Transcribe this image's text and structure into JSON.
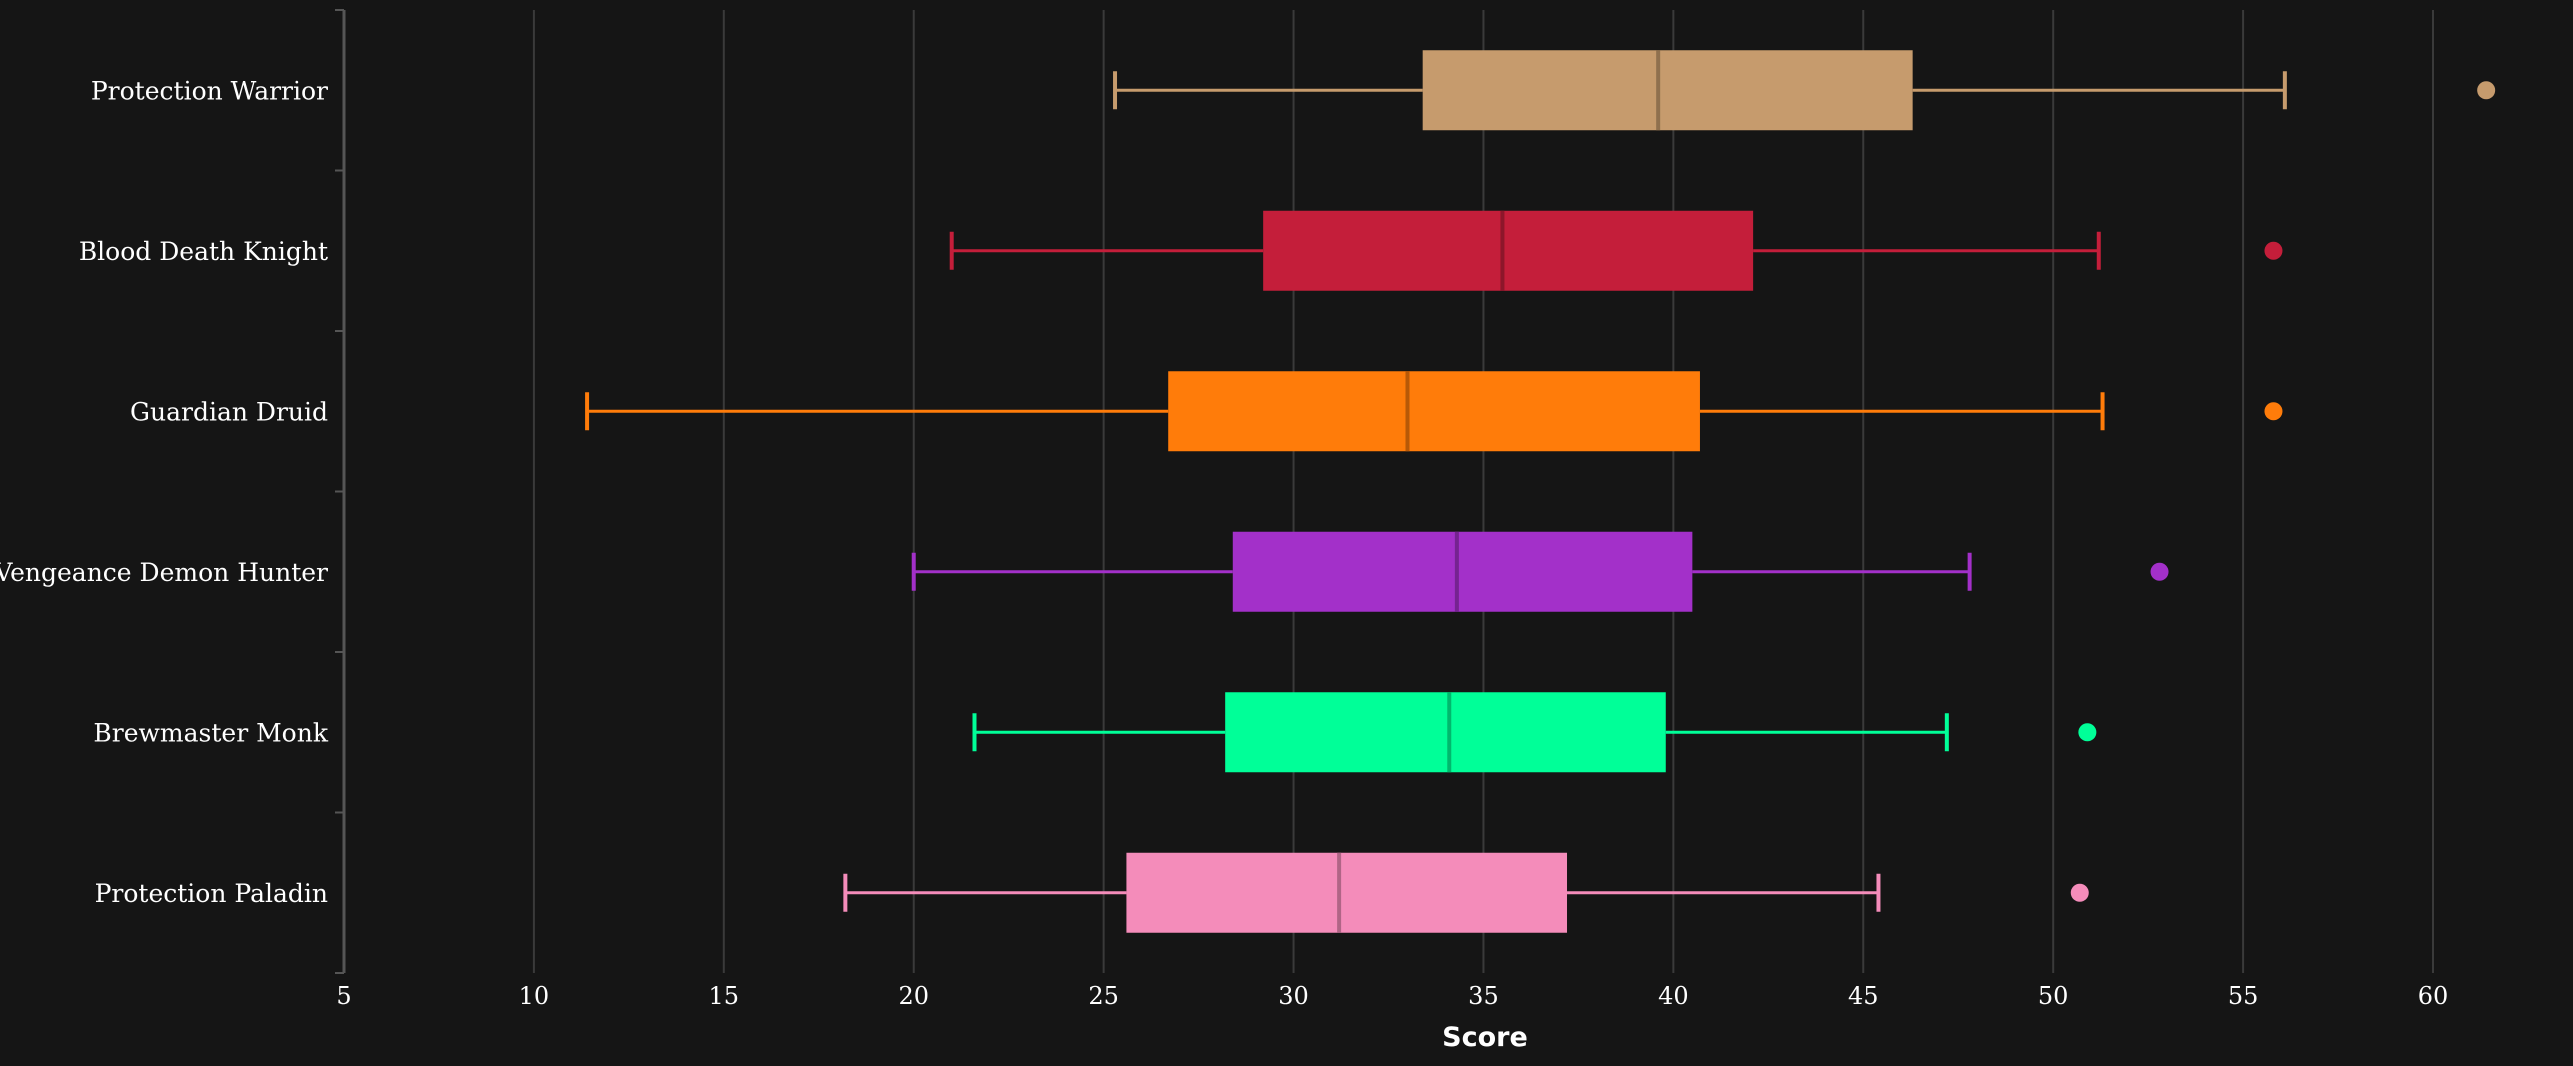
{
  "chart_data": {
    "type": "boxplot",
    "orientation": "horizontal",
    "xlabel": "Score",
    "xlim": [
      5,
      62
    ],
    "xticks": [
      5,
      10,
      15,
      20,
      25,
      30,
      35,
      40,
      45,
      50,
      55,
      60
    ],
    "grid": "vertical",
    "categories": [
      "Protection Warrior",
      "Blood Death Knight",
      "Guardian Druid",
      "Vengeance Demon Hunter",
      "Brewmaster Monk",
      "Protection Paladin"
    ],
    "boxes": [
      {
        "min": 25.3,
        "q1": 33.4,
        "median": 39.6,
        "q3": 46.3,
        "max": 56.1,
        "outliers": [
          61.4
        ],
        "color": "#C69B6D"
      },
      {
        "min": 21.0,
        "q1": 29.2,
        "median": 35.5,
        "q3": 42.1,
        "max": 51.2,
        "outliers": [
          55.8
        ],
        "color": "#C41E3A"
      },
      {
        "min": 11.4,
        "q1": 26.7,
        "median": 33.0,
        "q3": 40.7,
        "max": 51.3,
        "outliers": [
          55.8
        ],
        "color": "#FF7C0A"
      },
      {
        "min": 20.0,
        "q1": 28.4,
        "median": 34.3,
        "q3": 40.5,
        "max": 47.8,
        "outliers": [
          52.8
        ],
        "color": "#A330C9"
      },
      {
        "min": 21.6,
        "q1": 28.2,
        "median": 34.1,
        "q3": 39.8,
        "max": 47.2,
        "outliers": [
          50.9
        ],
        "color": "#00FF98"
      },
      {
        "min": 18.2,
        "q1": 25.6,
        "median": 31.2,
        "q3": 37.2,
        "max": 45.4,
        "outliers": [
          50.7
        ],
        "color": "#F48CBA"
      }
    ]
  }
}
